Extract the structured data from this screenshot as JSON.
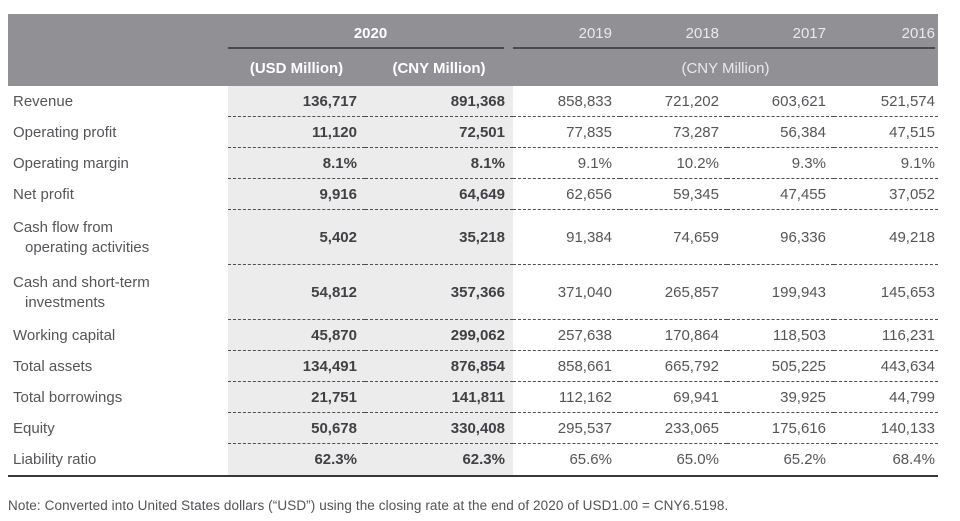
{
  "table": {
    "header": {
      "year_2020": "2020",
      "col_usd": "(USD Million)",
      "col_cny_2020": "(CNY Million)",
      "years": [
        "2019",
        "2018",
        "2017",
        "2016"
      ],
      "cny_million_group": "(CNY Million)"
    },
    "rows": [
      {
        "label": "Revenue",
        "usd": "136,717",
        "cny": "891,368",
        "y2019": "858,833",
        "y2018": "721,202",
        "y2017": "603,621",
        "y2016": "521,574"
      },
      {
        "label": "Operating profit",
        "usd": "11,120",
        "cny": "72,501",
        "y2019": "77,835",
        "y2018": "73,287",
        "y2017": "56,384",
        "y2016": "47,515"
      },
      {
        "label": "Operating margin",
        "usd": "8.1%",
        "cny": "8.1%",
        "y2019": "9.1%",
        "y2018": "10.2%",
        "y2017": "9.3%",
        "y2016": "9.1%"
      },
      {
        "label": "Net profit",
        "usd": "9,916",
        "cny": "64,649",
        "y2019": "62,656",
        "y2018": "59,345",
        "y2017": "47,455",
        "y2016": "37,052"
      },
      {
        "label": "Cash flow from",
        "label2": "operating activities",
        "usd": "5,402",
        "cny": "35,218",
        "y2019": "91,384",
        "y2018": "74,659",
        "y2017": "96,336",
        "y2016": "49,218"
      },
      {
        "label": "Cash and short-term",
        "label2": "investments",
        "usd": "54,812",
        "cny": "357,366",
        "y2019": "371,040",
        "y2018": "265,857",
        "y2017": "199,943",
        "y2016": "145,653"
      },
      {
        "label": "Working capital",
        "usd": "45,870",
        "cny": "299,062",
        "y2019": "257,638",
        "y2018": "170,864",
        "y2017": "118,503",
        "y2016": "116,231"
      },
      {
        "label": "Total assets",
        "usd": "134,491",
        "cny": "876,854",
        "y2019": "858,661",
        "y2018": "665,792",
        "y2017": "505,225",
        "y2016": "443,634"
      },
      {
        "label": "Total borrowings",
        "usd": "21,751",
        "cny": "141,811",
        "y2019": "112,162",
        "y2018": "69,941",
        "y2017": "39,925",
        "y2016": "44,799"
      },
      {
        "label": "Equity",
        "usd": "50,678",
        "cny": "330,408",
        "y2019": "295,537",
        "y2018": "233,065",
        "y2017": "175,616",
        "y2016": "140,133"
      },
      {
        "label": "Liability ratio",
        "usd": "62.3%",
        "cny": "62.3%",
        "y2019": "65.6%",
        "y2018": "65.0%",
        "y2017": "65.2%",
        "y2016": "68.4%"
      }
    ],
    "note": "Note: Converted into United States dollars (“USD”) using the closing rate at the end of 2020 of USD1.00 = CNY6.5198."
  },
  "colors": {
    "header_bg": "#919195",
    "band_bg": "#ececed",
    "underline_dark": "#4a4a4e",
    "text_regular": "#55555a",
    "text_bold": "#404045",
    "bottom_line": "#38383c"
  }
}
